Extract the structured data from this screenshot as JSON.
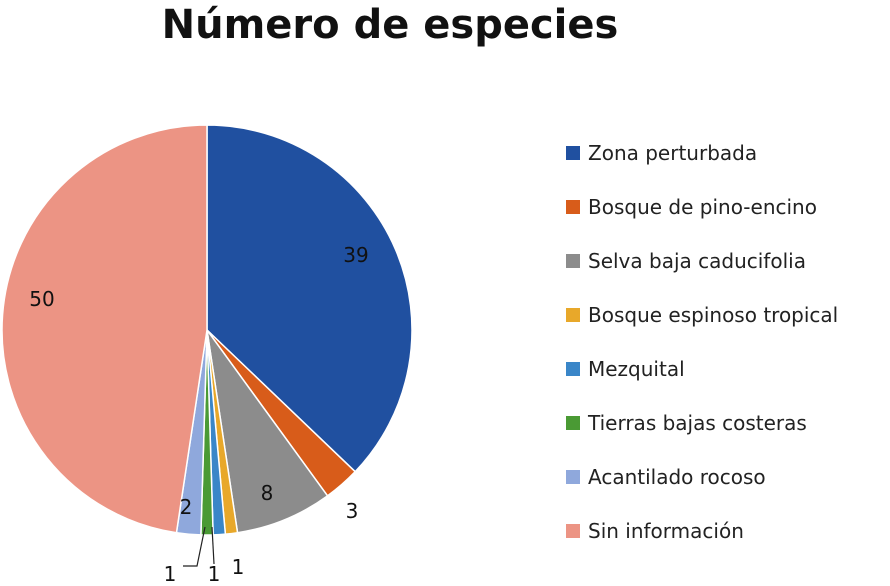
{
  "chart_data": {
    "type": "pie",
    "title": "Número de especies",
    "legend_position": "right",
    "slices": [
      {
        "label": "Zona perturbada",
        "value": 39,
        "color": "#2050a0"
      },
      {
        "label": "Bosque de pino-encino",
        "value": 3,
        "color": "#d85c1a"
      },
      {
        "label": "Selva baja caducifolia",
        "value": 8,
        "color": "#8c8c8c"
      },
      {
        "label": "Bosque espinoso tropical",
        "value": 1,
        "color": "#e8a82a"
      },
      {
        "label": "Mezquital",
        "value": 1,
        "color": "#3a86c8"
      },
      {
        "label": "Tierras bajas costeras",
        "value": 1,
        "color": "#4a9a34"
      },
      {
        "label": "Acantilado rocoso",
        "value": 2,
        "color": "#8fa8dc"
      },
      {
        "label": "Sin información",
        "value": 50,
        "color": "#ec9484"
      }
    ]
  }
}
